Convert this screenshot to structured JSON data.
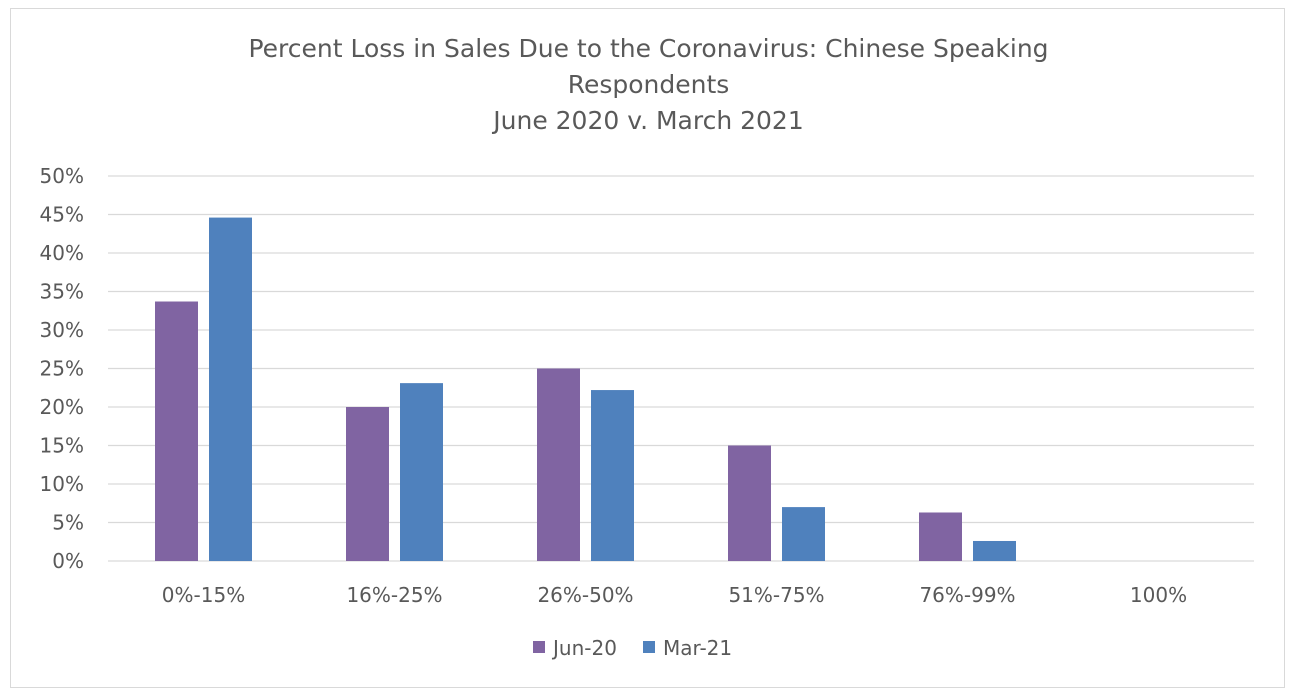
{
  "chart_data": {
    "type": "bar",
    "title_lines": [
      "Percent Loss in Sales Due to the Coronavirus: Chinese Speaking",
      "Respondents",
      "June 2020 v. March 2021"
    ],
    "categories": [
      "0%-15%",
      "16%-25%",
      "26%-50%",
      "51%-75%",
      "76%-99%",
      "100%"
    ],
    "series": [
      {
        "name": "Jun-20",
        "color": "#8064a2",
        "values": [
          33.7,
          20.0,
          25.0,
          15.0,
          6.3,
          0
        ]
      },
      {
        "name": "Mar-21",
        "color": "#4f81bd",
        "values": [
          44.6,
          23.1,
          22.2,
          7.0,
          2.6,
          0
        ]
      }
    ],
    "y_ticks": [
      "0%",
      "5%",
      "10%",
      "15%",
      "20%",
      "25%",
      "30%",
      "35%",
      "40%",
      "45%",
      "50%"
    ],
    "ylim": [
      0,
      50
    ],
    "grid": true,
    "legend_position": "bottom",
    "xlabel": "",
    "ylabel": ""
  }
}
